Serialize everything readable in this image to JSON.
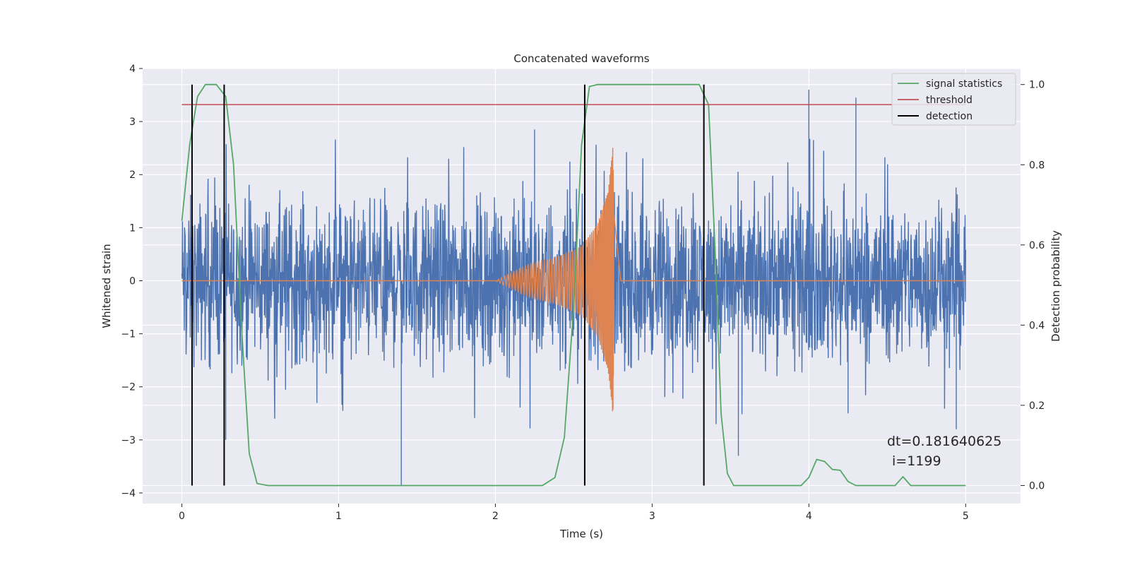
{
  "chart_data": {
    "type": "line",
    "title": "Concatenated waveforms",
    "xlabel": "Time (s)",
    "ylabel": "Whitened strain",
    "ylabel_right": "Detection probability",
    "xlim": [
      -0.25,
      5.35
    ],
    "ylim": [
      -4.2,
      4.0
    ],
    "ylim_right": [
      -0.045,
      1.04
    ],
    "x_ticks": [
      0,
      1,
      2,
      3,
      4,
      5
    ],
    "y_ticks": [
      4,
      3,
      2,
      1,
      0,
      -1,
      -2,
      -3,
      -4
    ],
    "y_ticks_right": [
      1.0,
      0.8,
      0.6,
      0.4,
      0.2,
      0.0
    ],
    "x_tick_labels": [
      "0",
      "1",
      "2",
      "3",
      "4",
      "5"
    ],
    "y_tick_labels": [
      "4",
      "3",
      "2",
      "1",
      "0",
      "−1",
      "−2",
      "−3",
      "−4"
    ],
    "y_tick_labels_right": [
      "1.0",
      "0.8",
      "0.6",
      "0.4",
      "0.2",
      "0.0"
    ],
    "grid": true,
    "legend_position": "top-right",
    "legend": [
      "signal statistics",
      "threshold",
      "detection"
    ],
    "colors": {
      "noise": "#4c72b0",
      "waveform": "#dd8452",
      "signal_statistics": "#55a868",
      "threshold": "#c44e52",
      "detection": "#000000",
      "background": "#eaeaf2",
      "grid": "#ffffff"
    },
    "series": [
      {
        "axis": "left",
        "x_range": [
          0,
          5
        ],
        "amplitude_envelope": 2.8,
        "spikes": [
          [
            0.28,
            -3.0
          ],
          [
            1.4,
            -3.85
          ],
          [
            2.25,
            2.85
          ],
          [
            4.0,
            3.6
          ],
          [
            4.3,
            3.45
          ],
          [
            4.25,
            -2.5
          ],
          [
            4.94,
            -2.8
          ],
          [
            3.55,
            -3.3
          ]
        ]
      },
      {
        "axis": "left",
        "points": [
          [
            0,
            0
          ],
          [
            2.0,
            0
          ],
          [
            2.2,
            0.3
          ],
          [
            2.4,
            0.45
          ],
          [
            2.55,
            0.65
          ],
          [
            2.65,
            1.05
          ],
          [
            2.72,
            1.7
          ],
          [
            2.75,
            2.55
          ],
          [
            2.76,
            0.0
          ],
          [
            5.0,
            0
          ]
        ]
      },
      {
        "name": "signal statistics",
        "axis": "right",
        "points": [
          [
            0,
            0.66
          ],
          [
            0.05,
            0.85
          ],
          [
            0.1,
            0.97
          ],
          [
            0.15,
            1.0
          ],
          [
            0.22,
            1.0
          ],
          [
            0.28,
            0.97
          ],
          [
            0.33,
            0.8
          ],
          [
            0.38,
            0.4
          ],
          [
            0.43,
            0.08
          ],
          [
            0.48,
            0.005
          ],
          [
            0.55,
            0.0
          ],
          [
            2.3,
            0.0
          ],
          [
            2.38,
            0.02
          ],
          [
            2.44,
            0.12
          ],
          [
            2.5,
            0.45
          ],
          [
            2.55,
            0.85
          ],
          [
            2.6,
            0.995
          ],
          [
            2.65,
            1.0
          ],
          [
            3.3,
            1.0
          ],
          [
            3.36,
            0.95
          ],
          [
            3.4,
            0.6
          ],
          [
            3.44,
            0.18
          ],
          [
            3.48,
            0.03
          ],
          [
            3.52,
            0.0
          ],
          [
            3.95,
            0.0
          ],
          [
            4.0,
            0.02
          ],
          [
            4.05,
            0.065
          ],
          [
            4.1,
            0.06
          ],
          [
            4.15,
            0.04
          ],
          [
            4.2,
            0.038
          ],
          [
            4.25,
            0.01
          ],
          [
            4.3,
            0.0
          ],
          [
            4.55,
            0.0
          ],
          [
            4.6,
            0.022
          ],
          [
            4.65,
            0.0
          ],
          [
            5.0,
            0.0
          ]
        ]
      },
      {
        "name": "threshold",
        "axis": "right",
        "points": [
          [
            0,
            0.95
          ],
          [
            5.0,
            0.95
          ]
        ]
      },
      {
        "name": "detection",
        "axis": "right",
        "type": "vlines",
        "x": [
          0.065,
          0.27,
          2.57,
          3.33
        ],
        "ymin": 0,
        "ymax": 1.0
      }
    ],
    "annotations": [
      "dt=0.181640625",
      "i=1199"
    ]
  }
}
